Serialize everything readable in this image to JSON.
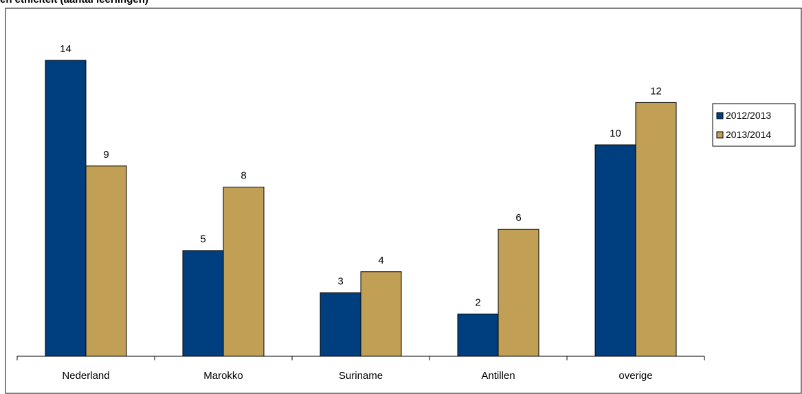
{
  "chart_data": {
    "type": "bar",
    "title": "en etniciteit (aantal leerlingen)",
    "categories": [
      "Nederland",
      "Marokko",
      "Suriname",
      "Antillen",
      "overige"
    ],
    "series": [
      {
        "name": "2012/2013",
        "color": "#003F7F",
        "values": [
          14,
          5,
          3,
          2,
          10
        ]
      },
      {
        "name": "2013/2014",
        "color": "#C1A056",
        "values": [
          9,
          8,
          4,
          6,
          12
        ]
      }
    ],
    "ylim": [
      0,
      16
    ],
    "grid": false,
    "legend_position": "right",
    "data_labels": true,
    "xlabel": "",
    "ylabel": ""
  }
}
